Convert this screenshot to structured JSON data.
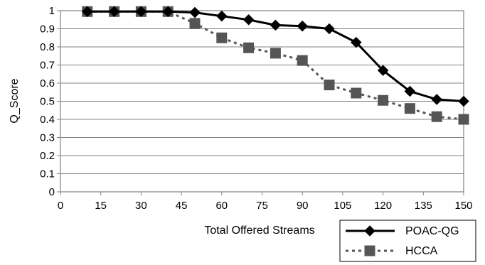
{
  "chart_data": {
    "type": "line",
    "xlabel": "Total Offered Streams",
    "ylabel": "Q_Score",
    "xlim": [
      0,
      150
    ],
    "ylim": [
      0,
      1
    ],
    "x_ticks": [
      "0",
      "15",
      "30",
      "45",
      "60",
      "75",
      "90",
      "105",
      "120",
      "135",
      "150"
    ],
    "y_ticks": [
      "0",
      "0.1",
      "0.2",
      "0.3",
      "0.4",
      "0.5",
      "0.6",
      "0.7",
      "0.8",
      "0.9",
      "1"
    ],
    "grid": "horizontal",
    "legend_position": "bottom-right",
    "series": [
      {
        "name": "POAC-QG",
        "color": "#000000",
        "style": "solid",
        "marker": "diamond",
        "x": [
          10,
          20,
          30,
          40,
          50,
          60,
          70,
          80,
          90,
          100,
          110,
          120,
          130,
          140,
          150
        ],
        "y": [
          0.995,
          0.995,
          0.995,
          0.995,
          0.99,
          0.97,
          0.95,
          0.92,
          0.915,
          0.9,
          0.825,
          0.67,
          0.555,
          0.51,
          0.5
        ]
      },
      {
        "name": "HCCA",
        "color": "#555555",
        "style": "dashed",
        "marker": "square",
        "x": [
          10,
          20,
          30,
          40,
          50,
          60,
          70,
          80,
          90,
          100,
          110,
          120,
          130,
          140,
          150
        ],
        "y": [
          0.995,
          0.995,
          0.995,
          0.995,
          0.93,
          0.85,
          0.795,
          0.765,
          0.725,
          0.59,
          0.545,
          0.505,
          0.46,
          0.415,
          0.4
        ]
      }
    ]
  }
}
